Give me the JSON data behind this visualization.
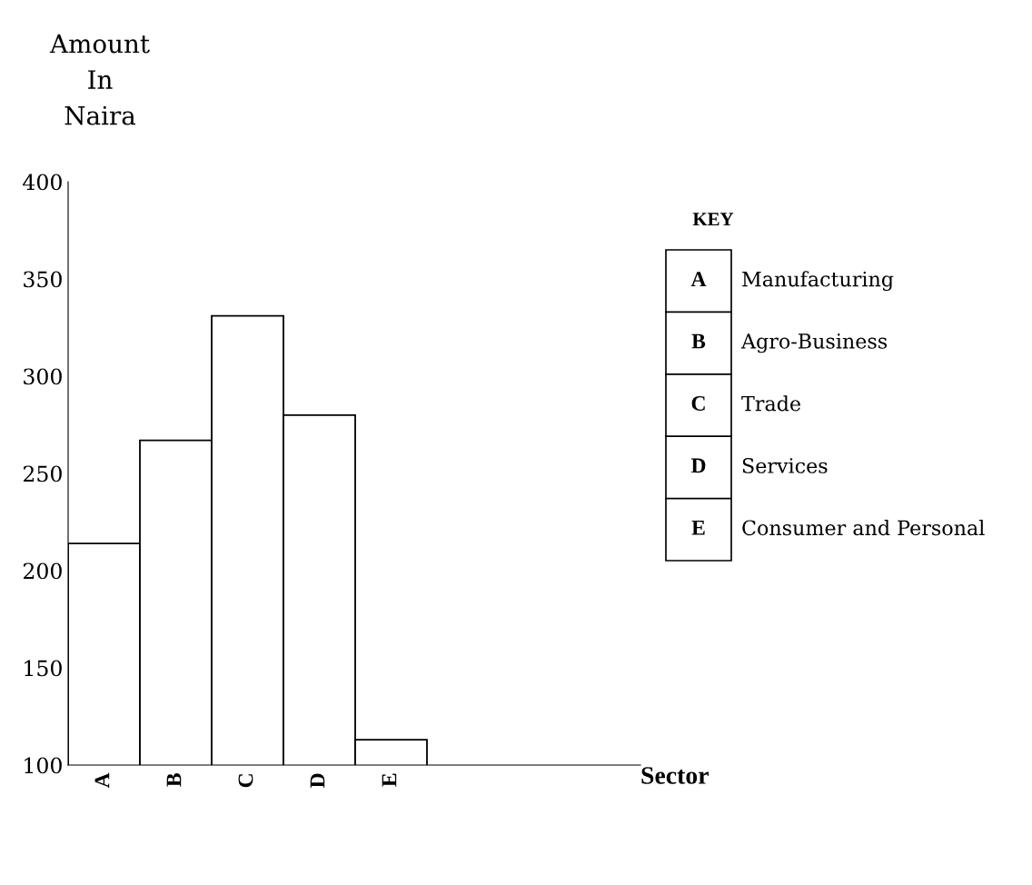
{
  "chart_data": {
    "type": "bar",
    "ylabel": "Amount\nIn\nNaira",
    "legend_title": "KEY",
    "categories": [
      "A",
      "B",
      "C",
      "D",
      "E"
    ],
    "values": [
      214,
      267,
      331,
      280,
      113
    ],
    "color": "#ffffff",
    "ylim": [
      100,
      400
    ],
    "yticks": [
      100,
      150,
      200,
      250,
      300,
      350,
      400
    ],
    "grid": false,
    "annotations": [
      "Manufacturing",
      "Agro-Business",
      "Trade",
      "Services",
      "Consumer and Personal",
      "Sector"
    ]
  }
}
